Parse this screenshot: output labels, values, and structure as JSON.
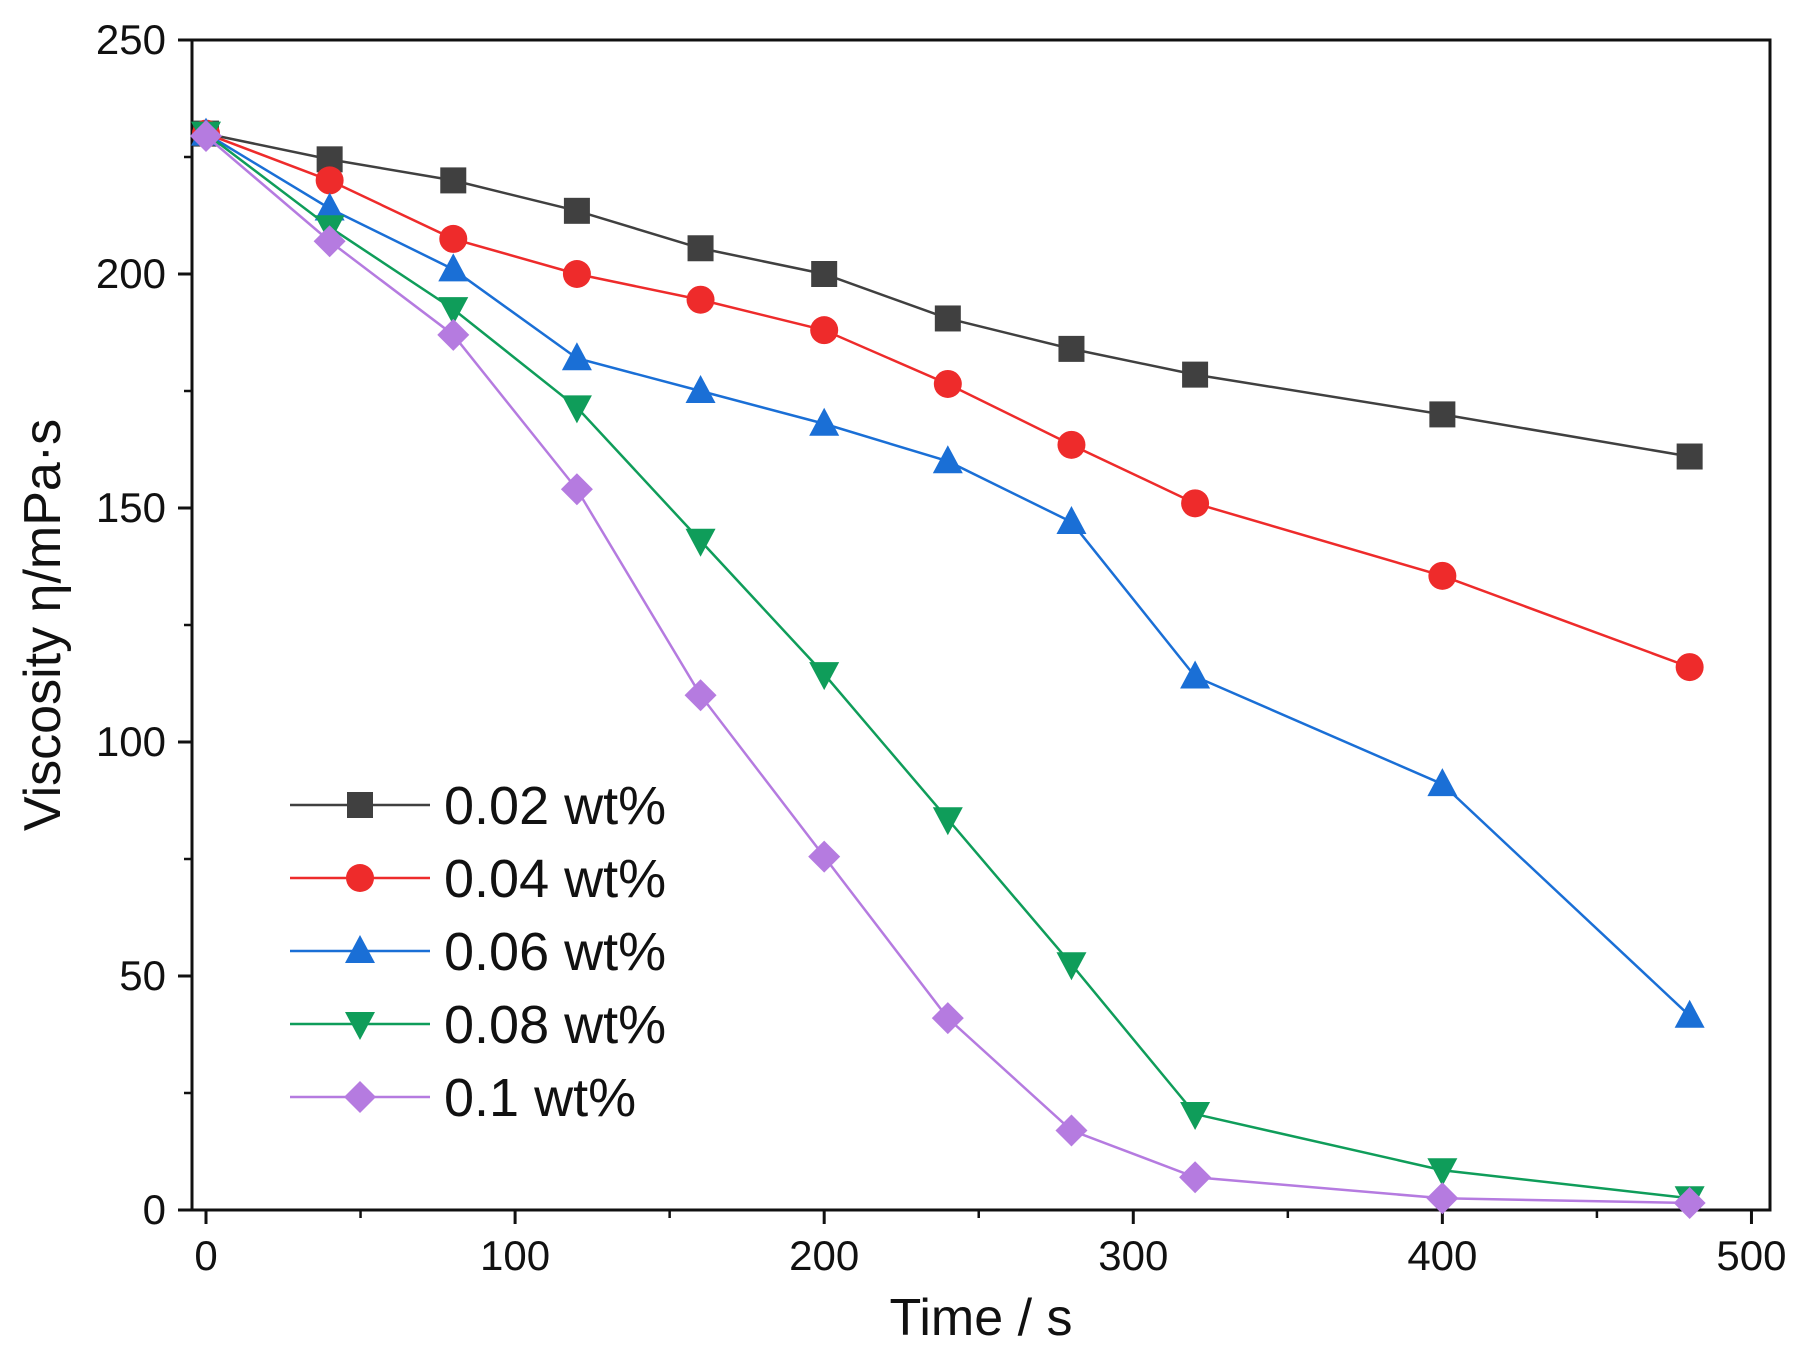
{
  "chart_data": {
    "type": "line",
    "xlabel": "Time / s",
    "ylabel": "Viscosity η/mPa·s",
    "xlim": [
      0,
      500
    ],
    "ylim": [
      0,
      250
    ],
    "xticks": [
      0,
      100,
      200,
      300,
      400,
      500
    ],
    "yticks": [
      0,
      50,
      100,
      150,
      200,
      250
    ],
    "grid": false,
    "legend_position": "bottom-left",
    "x": [
      0,
      40,
      80,
      120,
      160,
      200,
      240,
      280,
      320,
      400,
      480
    ],
    "series": [
      {
        "name": "0.02 wt%",
        "color": "#404040",
        "marker": "square",
        "values": [
          230,
          224.5,
          220,
          213.5,
          205.5,
          200,
          190.5,
          184,
          178.5,
          170,
          161
        ]
      },
      {
        "name": "0.04 wt%",
        "color": "#ee2b2b",
        "marker": "circle",
        "values": [
          230,
          220,
          207.5,
          200,
          194.5,
          188,
          176.5,
          163.5,
          151,
          135.5,
          116
        ]
      },
      {
        "name": "0.06 wt%",
        "color": "#1a6fd6",
        "marker": "triangle-up",
        "values": [
          230,
          214,
          201,
          182,
          175,
          168,
          160,
          147,
          114,
          91,
          41.5
        ]
      },
      {
        "name": "0.08 wt%",
        "color": "#0f9d5a",
        "marker": "triangle-down",
        "values": [
          230,
          210,
          192.5,
          171.5,
          143,
          114.5,
          83.5,
          52.5,
          20.5,
          8.5,
          2.5
        ]
      },
      {
        "name": "0.1 wt%",
        "color": "#b57be0",
        "marker": "diamond",
        "values": [
          229.5,
          207,
          187,
          154,
          110,
          75.5,
          41,
          17,
          7,
          2.5,
          1.5
        ]
      }
    ]
  }
}
